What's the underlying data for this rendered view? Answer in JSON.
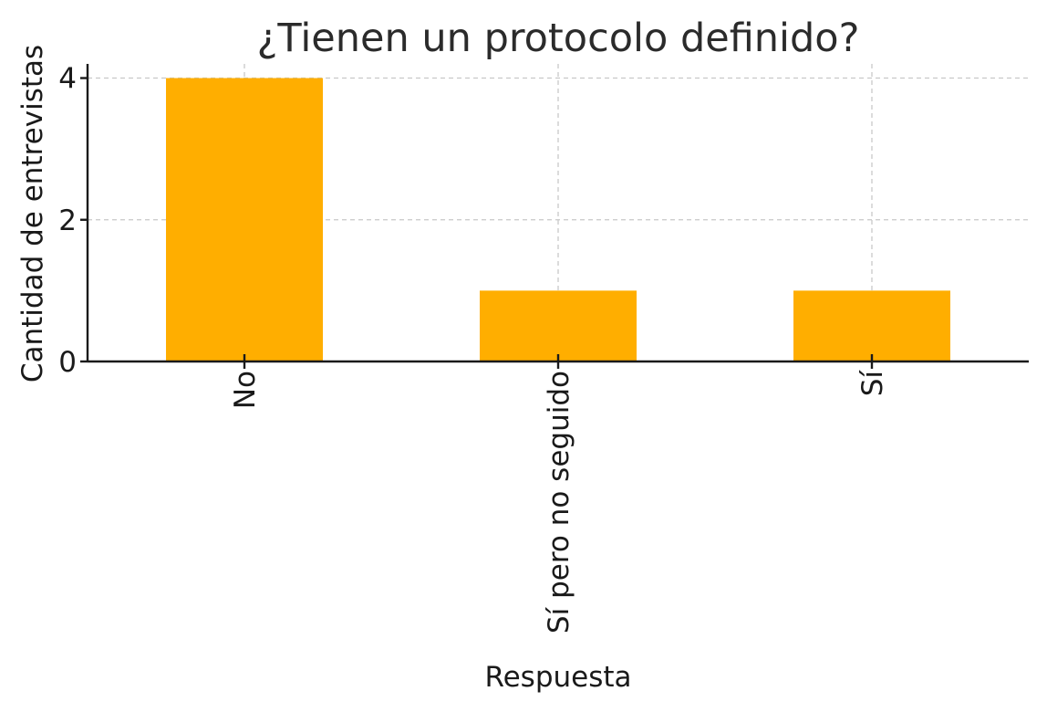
{
  "chart_data": {
    "type": "bar",
    "title": "¿Tienen un protocolo definido?",
    "xlabel": "Respuesta",
    "ylabel": "Cantidad de entrevistas",
    "categories": [
      "No",
      "Sí pero no seguido",
      "Sí"
    ],
    "values": [
      4,
      1,
      1
    ],
    "ylim": [
      0,
      4.2
    ],
    "yticks": [
      0,
      2,
      4
    ],
    "grid": true,
    "legend": "none",
    "bar_color": "#FFAE00",
    "x_tick_rotation": "vertical"
  }
}
